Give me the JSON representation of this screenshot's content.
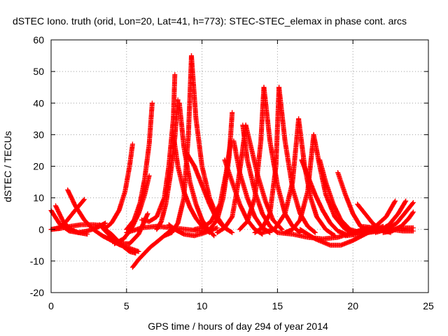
{
  "chart_data": {
    "type": "scatter",
    "title": "dSTEC Iono. truth (orid, Lon=20, Lat=41, h=773): STEC-STEC_elemax in phase cont. arcs",
    "xlabel": "GPS time / hours of day 294 of year 2014",
    "ylabel": "dSTEC  / TECUs",
    "xlim": [
      0,
      25
    ],
    "ylim": [
      -20,
      60
    ],
    "x_ticks": [
      0,
      5,
      10,
      15,
      20,
      25
    ],
    "y_ticks": [
      -20,
      -10,
      0,
      10,
      20,
      30,
      40,
      50,
      60
    ],
    "grid": true,
    "marker": "+",
    "series_color": "#ff0000",
    "arcs": [
      {
        "x": [
          0.0,
          0.5,
          1.0,
          1.5,
          2.2
        ],
        "y": [
          0.0,
          0.5,
          2.5,
          5.5,
          9.5
        ]
      },
      {
        "x": [
          0.0,
          0.6,
          1.2,
          1.8,
          2.4,
          3.0,
          3.6
        ],
        "y": [
          6.0,
          1.5,
          -0.5,
          -1.0,
          -0.5,
          0.5,
          2.0
        ]
      },
      {
        "x": [
          0.3,
          0.8,
          1.3,
          1.8,
          2.4
        ],
        "y": [
          7.5,
          2.5,
          0.0,
          -1.0,
          -1.5
        ]
      },
      {
        "x": [
          1.1,
          1.6,
          2.2,
          2.8,
          3.4,
          4.0,
          4.6,
          5.2,
          5.8
        ],
        "y": [
          12.5,
          7.5,
          3.0,
          0.0,
          -2.0,
          -3.5,
          -5.0,
          -6.0,
          -7.0
        ]
      },
      {
        "x": [
          0.0,
          0.6,
          1.3,
          2.0,
          2.8,
          3.5
        ],
        "y": [
          0.0,
          0.3,
          1.0,
          1.5,
          1.5,
          1.2
        ]
      },
      {
        "x": [
          3.2,
          3.6,
          4.0,
          4.4,
          4.8,
          5.2,
          5.6
        ],
        "y": [
          1.5,
          0.0,
          -1.5,
          -3.5,
          -5.5,
          -7.0,
          -7.5
        ]
      },
      {
        "x": [
          3.5,
          4.0,
          4.5,
          4.9,
          5.2,
          5.4
        ],
        "y": [
          0.0,
          2.0,
          6.0,
          12.0,
          20.0,
          27.0
        ]
      },
      {
        "x": [
          3.4,
          4.0,
          4.6,
          5.2,
          5.8,
          6.4
        ],
        "y": [
          0.5,
          -2.5,
          -4.5,
          -4.5,
          -1.5,
          5.0
        ]
      },
      {
        "x": [
          5.4,
          5.8,
          6.2,
          6.6,
          7.0,
          7.5,
          8.0
        ],
        "y": [
          -12.0,
          -9.5,
          -7.5,
          -5.5,
          -4.0,
          -2.0,
          0.0
        ]
      },
      {
        "x": [
          4.2,
          4.8,
          5.3,
          5.8,
          6.2,
          6.5
        ],
        "y": [
          -4.5,
          -3.0,
          0.0,
          5.0,
          11.0,
          17.0
        ]
      },
      {
        "x": [
          5.0,
          5.5,
          5.9,
          6.2,
          6.5,
          6.7
        ],
        "y": [
          0.0,
          3.0,
          8.5,
          16.0,
          27.0,
          40.0
        ]
      },
      {
        "x": [
          5.0,
          6.0,
          7.0,
          8.0,
          9.0,
          10.0
        ],
        "y": [
          -1.0,
          0.5,
          1.0,
          0.5,
          0.0,
          -0.5
        ]
      },
      {
        "x": [
          6.0,
          6.5,
          7.0,
          7.5,
          7.8,
          8.1,
          8.2
        ],
        "y": [
          3.0,
          2.5,
          4.0,
          10.0,
          20.0,
          35.0,
          49.0
        ]
      },
      {
        "x": [
          7.0,
          7.3,
          7.6,
          7.9,
          8.2,
          8.4
        ],
        "y": [
          0.0,
          2.5,
          8.0,
          17.0,
          29.0,
          41.0
        ]
      },
      {
        "x": [
          7.5,
          8.0,
          8.4,
          8.8,
          9.1,
          9.3
        ],
        "y": [
          -2.0,
          -1.0,
          2.0,
          10.0,
          30.0,
          55.0
        ]
      },
      {
        "x": [
          9.3,
          9.6,
          10.0,
          10.5,
          11.0,
          11.5,
          12.0
        ],
        "y": [
          55.0,
          35.0,
          20.0,
          10.0,
          4.0,
          0.5,
          -1.0
        ]
      },
      {
        "x": [
          8.1,
          8.4,
          8.8,
          9.2,
          9.6,
          10.0,
          10.5
        ],
        "y": [
          30.0,
          20.0,
          12.0,
          7.0,
          3.5,
          1.0,
          -1.0
        ]
      },
      {
        "x": [
          8.5,
          8.8,
          9.2,
          9.6,
          10.0,
          10.4,
          10.8
        ],
        "y": [
          40.0,
          26.0,
          15.0,
          8.0,
          3.0,
          0.0,
          -2.0
        ]
      },
      {
        "x": [
          7.8,
          8.2,
          8.8,
          9.5,
          10.2,
          11.0
        ],
        "y": [
          1.5,
          0.0,
          -1.5,
          -2.0,
          -1.0,
          0.5
        ]
      },
      {
        "x": [
          9.0,
          9.5,
          10.0,
          10.5,
          11.0,
          11.5
        ],
        "y": [
          24.0,
          20.0,
          14.0,
          8.0,
          3.0,
          0.5
        ]
      },
      {
        "x": [
          9.5,
          10.0,
          10.6,
          11.2,
          11.6,
          11.9
        ],
        "y": [
          0.0,
          0.5,
          2.5,
          8.0,
          18.0,
          28.0
        ]
      },
      {
        "x": [
          10.0,
          10.5,
          11.0,
          11.4,
          11.8,
          12.0
        ],
        "y": [
          -1.0,
          0.0,
          3.0,
          10.0,
          23.0,
          37.0
        ]
      },
      {
        "x": [
          11.0,
          11.5,
          12.0,
          12.3,
          12.6,
          12.9
        ],
        "y": [
          -1.0,
          0.5,
          4.0,
          12.0,
          22.0,
          33.0
        ]
      },
      {
        "x": [
          11.5,
          12.0,
          12.5,
          13.0,
          13.5,
          14.0
        ],
        "y": [
          22.0,
          15.0,
          8.0,
          3.0,
          0.0,
          -1.5
        ]
      },
      {
        "x": [
          12.1,
          12.5,
          13.0,
          13.5,
          14.0,
          14.5
        ],
        "y": [
          28.0,
          18.0,
          10.0,
          4.0,
          0.5,
          -1.0
        ]
      },
      {
        "x": [
          12.7,
          13.0,
          13.5,
          14.0,
          14.5,
          15.0
        ],
        "y": [
          33.0,
          22.0,
          12.0,
          5.0,
          1.0,
          -1.0
        ]
      },
      {
        "x": [
          12.9,
          13.3,
          13.7,
          14.2,
          14.7,
          15.3
        ],
        "y": [
          33.0,
          25.0,
          17.0,
          9.0,
          3.0,
          0.0
        ]
      },
      {
        "x": [
          12.5,
          13.0,
          13.5,
          13.9,
          14.1
        ],
        "y": [
          0.0,
          2.5,
          10.0,
          28.0,
          45.0
        ]
      },
      {
        "x": [
          14.1,
          14.5,
          15.0,
          15.5,
          16.0,
          16.5
        ],
        "y": [
          45.0,
          28.0,
          14.0,
          5.0,
          1.0,
          -1.0
        ]
      },
      {
        "x": [
          13.5,
          14.0,
          14.5,
          14.9,
          15.1
        ],
        "y": [
          -1.0,
          0.5,
          5.0,
          20.0,
          45.0
        ]
      },
      {
        "x": [
          15.1,
          15.5,
          16.0,
          16.5,
          17.0,
          17.5
        ],
        "y": [
          45.0,
          28.0,
          13.0,
          5.0,
          1.0,
          -1.0
        ]
      },
      {
        "x": [
          14.0,
          14.8,
          15.5,
          16.0,
          16.4
        ],
        "y": [
          -1.0,
          0.0,
          5.0,
          15.0,
          35.0
        ]
      },
      {
        "x": [
          16.4,
          16.8,
          17.2,
          17.6,
          18.2,
          18.8
        ],
        "y": [
          35.0,
          20.0,
          10.0,
          4.0,
          0.0,
          -2.0
        ]
      },
      {
        "x": [
          15.5,
          16.0,
          16.5,
          17.0,
          17.4
        ],
        "y": [
          -1.0,
          0.0,
          3.0,
          12.0,
          30.0
        ]
      },
      {
        "x": [
          17.4,
          17.8,
          18.2,
          18.8,
          19.4,
          20.0
        ],
        "y": [
          30.0,
          20.0,
          11.0,
          4.0,
          0.5,
          -1.5
        ]
      },
      {
        "x": [
          16.6,
          17.0,
          17.5,
          18.0,
          18.5,
          19.0,
          19.5
        ],
        "y": [
          22.0,
          17.0,
          11.0,
          6.0,
          2.0,
          -0.5,
          -1.5
        ]
      },
      {
        "x": [
          17.8,
          18.2,
          18.7,
          19.2,
          19.8,
          20.5
        ],
        "y": [
          22.0,
          15.0,
          8.0,
          3.0,
          0.0,
          -1.0
        ]
      },
      {
        "x": [
          19.0,
          19.5,
          20.0,
          20.5,
          21.0
        ],
        "y": [
          18.0,
          11.0,
          5.0,
          1.0,
          -0.5
        ]
      },
      {
        "x": [
          16.5,
          17.5,
          18.5,
          19.2,
          20.0,
          21.0,
          22.0
        ],
        "y": [
          0.0,
          -3.0,
          -5.0,
          -5.0,
          -3.5,
          -1.0,
          1.0
        ]
      },
      {
        "x": [
          15.0,
          16.0,
          17.0,
          18.0,
          19.0,
          20.0,
          21.0
        ],
        "y": [
          -1.0,
          -1.5,
          -2.5,
          -3.0,
          -2.5,
          -1.0,
          0.5
        ]
      },
      {
        "x": [
          20.3,
          20.8,
          21.3,
          21.8,
          22.5
        ],
        "y": [
          8.0,
          5.0,
          2.0,
          0.0,
          -1.0
        ]
      },
      {
        "x": [
          20.0,
          20.8,
          21.5,
          22.2,
          22.8
        ],
        "y": [
          -1.0,
          -0.5,
          1.0,
          4.0,
          9.0
        ]
      },
      {
        "x": [
          21.0,
          21.7,
          22.4,
          23.0,
          23.5
        ],
        "y": [
          -1.0,
          -0.5,
          1.5,
          5.0,
          9.0
        ]
      },
      {
        "x": [
          21.5,
          22.2,
          22.9,
          23.5,
          24.0
        ],
        "y": [
          -1.0,
          0.0,
          2.0,
          5.5,
          8.5
        ]
      },
      {
        "x": [
          22.0,
          22.6,
          23.2,
          23.7,
          24.0
        ],
        "y": [
          -1.0,
          -0.5,
          1.0,
          3.5,
          5.5
        ]
      },
      {
        "x": [
          20.5,
          21.5,
          22.5,
          23.3,
          24.0
        ],
        "y": [
          1.0,
          0.5,
          0.0,
          -0.5,
          -0.5
        ]
      },
      {
        "x": [
          19.5,
          20.5,
          21.5,
          22.5,
          23.5,
          24.0
        ],
        "y": [
          -2.0,
          -1.5,
          -0.5,
          0.0,
          0.5,
          0.5
        ]
      }
    ]
  }
}
